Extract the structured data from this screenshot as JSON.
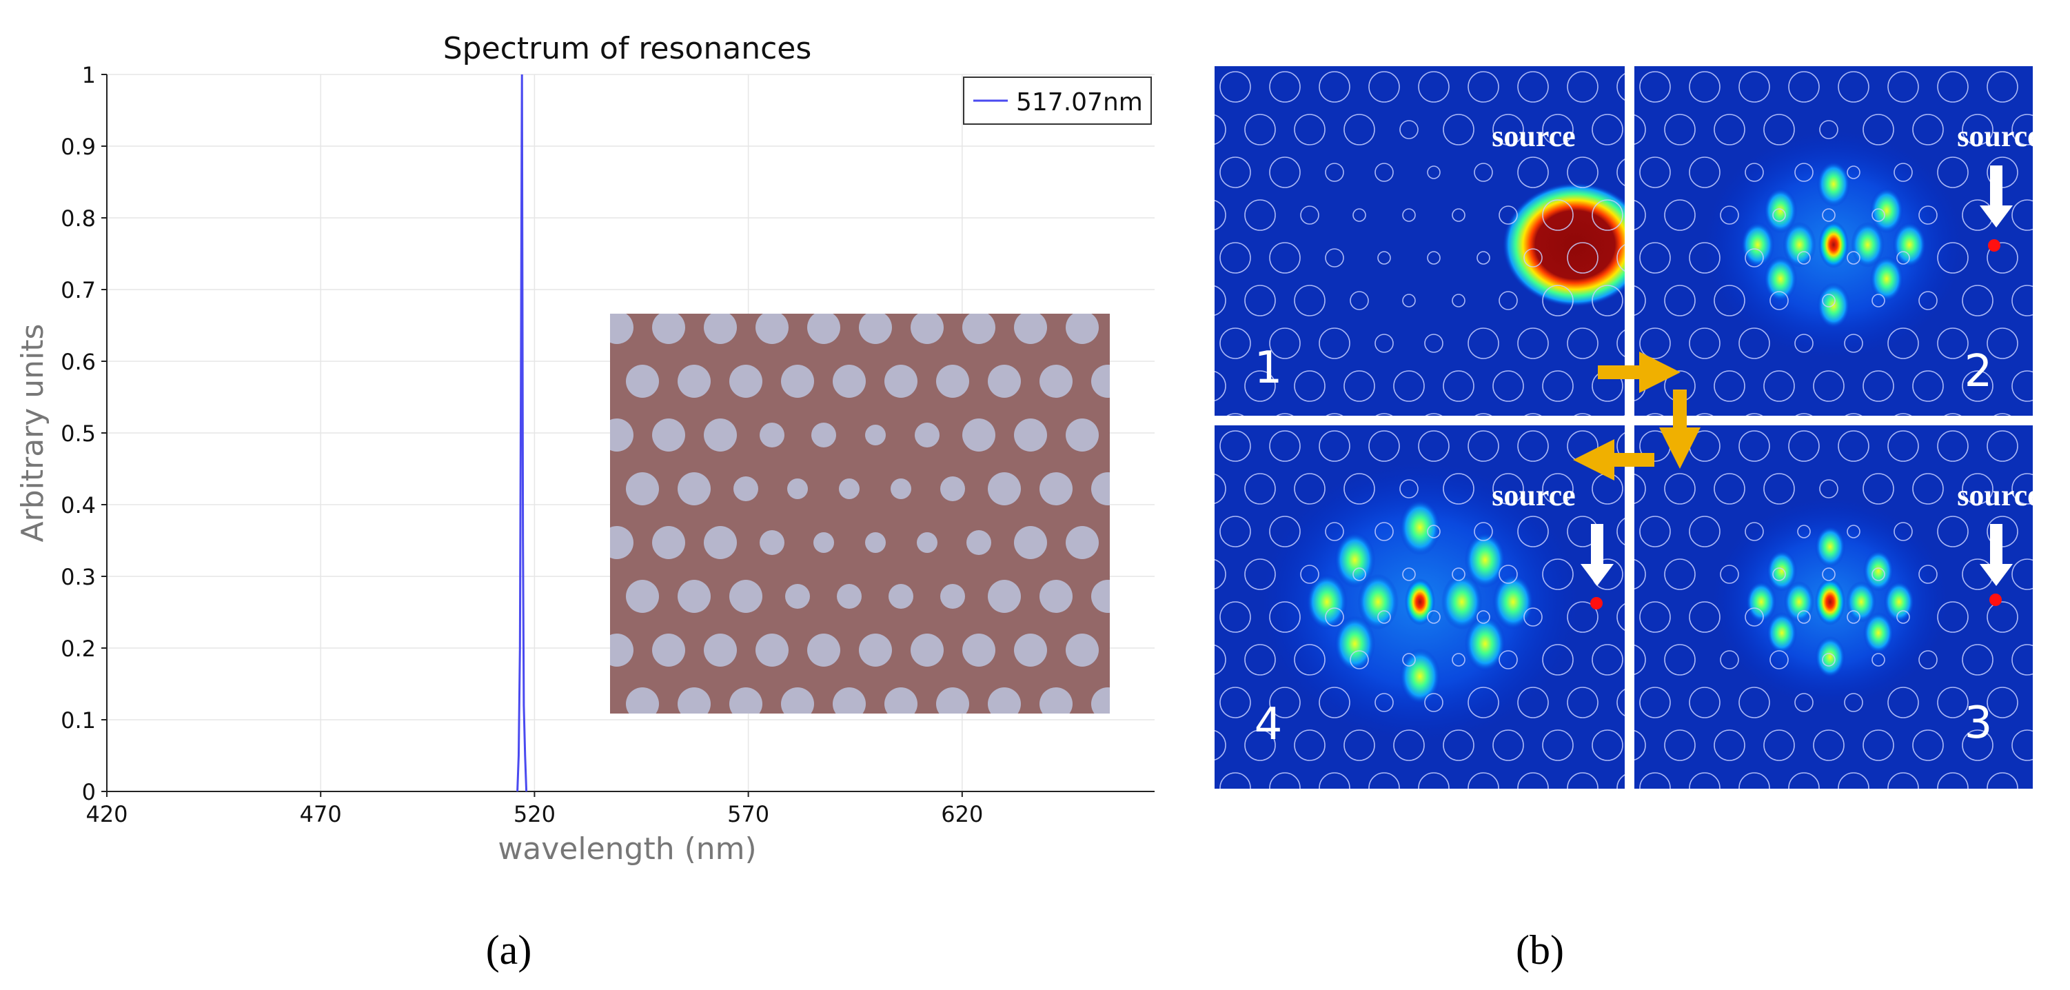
{
  "panel_a": {
    "caption": "(a)",
    "chart_data": {
      "type": "line",
      "title": "Spectrum of resonances",
      "xlabel": "wavelength (nm)",
      "ylabel": "Arbitrary units",
      "xlim": [
        420,
        665
      ],
      "ylim": [
        0,
        1
      ],
      "xticks": [
        420,
        470,
        520,
        570,
        620
      ],
      "yticks": [
        0,
        0.1,
        0.2,
        0.3,
        0.4,
        0.5,
        0.6,
        0.7,
        0.8,
        0.9,
        1
      ],
      "ytick_labels": [
        "0",
        "0.1",
        "0.2",
        "0.3",
        "0.4",
        "0.5",
        "0.6",
        "0.7",
        "0.8",
        "0.9",
        "1"
      ],
      "grid": true,
      "legend_position": "top-right",
      "series": [
        {
          "name": "517.07nm",
          "color": "#4a4af0",
          "x": [
            516.0,
            516.3,
            516.6,
            516.85,
            517.0,
            517.07,
            517.15,
            517.3,
            517.5,
            517.8,
            518.1
          ],
          "y": [
            0,
            0.05,
            0.2,
            0.62,
            0.9,
            1.0,
            0.77,
            0.35,
            0.12,
            0.05,
            0
          ]
        }
      ]
    },
    "inset": {
      "background_color": "#946868",
      "hole_color": "#b6b6cc"
    }
  },
  "panel_b": {
    "caption": "(b)",
    "source_label": "source",
    "panels": [
      {
        "number": "1"
      },
      {
        "number": "2"
      },
      {
        "number": "3"
      },
      {
        "number": "4"
      }
    ],
    "arrow_color": "#f0b000",
    "source_dot_color": "#ff1010"
  }
}
